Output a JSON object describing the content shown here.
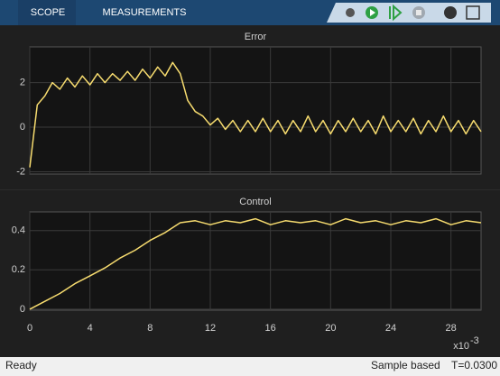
{
  "toolbar": {
    "tabs": [
      "SCOPE",
      "MEASUREMENTS"
    ]
  },
  "chart_data": [
    {
      "type": "line",
      "title": "Error",
      "color": "#f7dc6f",
      "grid": true,
      "x": [
        0,
        0.5,
        1,
        1.5,
        2,
        2.5,
        3,
        3.5,
        4,
        4.5,
        5,
        5.5,
        6,
        6.5,
        7,
        7.5,
        8,
        8.5,
        9,
        9.5,
        10,
        10.5,
        11,
        11.5,
        12,
        12.5,
        13,
        13.5,
        14,
        14.5,
        15,
        15.5,
        16,
        16.5,
        17,
        17.5,
        18,
        18.5,
        19,
        19.5,
        20,
        20.5,
        21,
        21.5,
        22,
        22.5,
        23,
        23.5,
        24,
        24.5,
        25,
        25.5,
        26,
        26.5,
        27,
        27.5,
        28,
        28.5,
        29,
        29.5,
        30
      ],
      "values": [
        -1.8,
        1.0,
        1.4,
        2.0,
        1.7,
        2.2,
        1.8,
        2.3,
        1.9,
        2.4,
        2.0,
        2.4,
        2.1,
        2.5,
        2.1,
        2.6,
        2.2,
        2.7,
        2.3,
        2.9,
        2.4,
        1.2,
        0.7,
        0.5,
        0.1,
        0.4,
        -0.1,
        0.3,
        -0.2,
        0.3,
        -0.2,
        0.4,
        -0.2,
        0.3,
        -0.3,
        0.3,
        -0.2,
        0.5,
        -0.2,
        0.3,
        -0.3,
        0.3,
        -0.2,
        0.4,
        -0.2,
        0.3,
        -0.3,
        0.5,
        -0.2,
        0.3,
        -0.2,
        0.4,
        -0.3,
        0.3,
        -0.2,
        0.5,
        -0.2,
        0.3,
        -0.3,
        0.3,
        -0.2
      ],
      "xlim": [
        0,
        30
      ],
      "xticks": [
        0,
        4,
        8,
        12,
        16,
        20,
        24,
        28
      ],
      "ylim": [
        -2.1,
        3.6
      ],
      "yticks": [
        -2,
        0,
        2
      ]
    },
    {
      "type": "line",
      "title": "Control",
      "color": "#f7dc6f",
      "grid": true,
      "x": [
        0,
        1,
        2,
        3,
        4,
        5,
        6,
        7,
        8,
        9,
        10,
        11,
        12,
        13,
        14,
        15,
        16,
        17,
        18,
        19,
        20,
        21,
        22,
        23,
        24,
        25,
        26,
        27,
        28,
        29,
        30
      ],
      "values": [
        0,
        0.04,
        0.08,
        0.13,
        0.17,
        0.21,
        0.26,
        0.3,
        0.35,
        0.39,
        0.44,
        0.45,
        0.43,
        0.45,
        0.44,
        0.46,
        0.43,
        0.45,
        0.44,
        0.45,
        0.43,
        0.46,
        0.44,
        0.45,
        0.43,
        0.45,
        0.44,
        0.46,
        0.43,
        0.45,
        0.44
      ],
      "xlim": [
        0,
        30
      ],
      "xticks": [
        0,
        4,
        8,
        12,
        16,
        20,
        24,
        28
      ],
      "ylim": [
        -0.005,
        0.495
      ],
      "yticks": [
        0,
        0.2,
        0.4
      ],
      "x_multiplier": {
        "base": "x10",
        "exponent": "-3"
      }
    }
  ],
  "status_bar": {
    "left": "Ready",
    "mode": "Sample based",
    "time": "T=0.0300"
  }
}
